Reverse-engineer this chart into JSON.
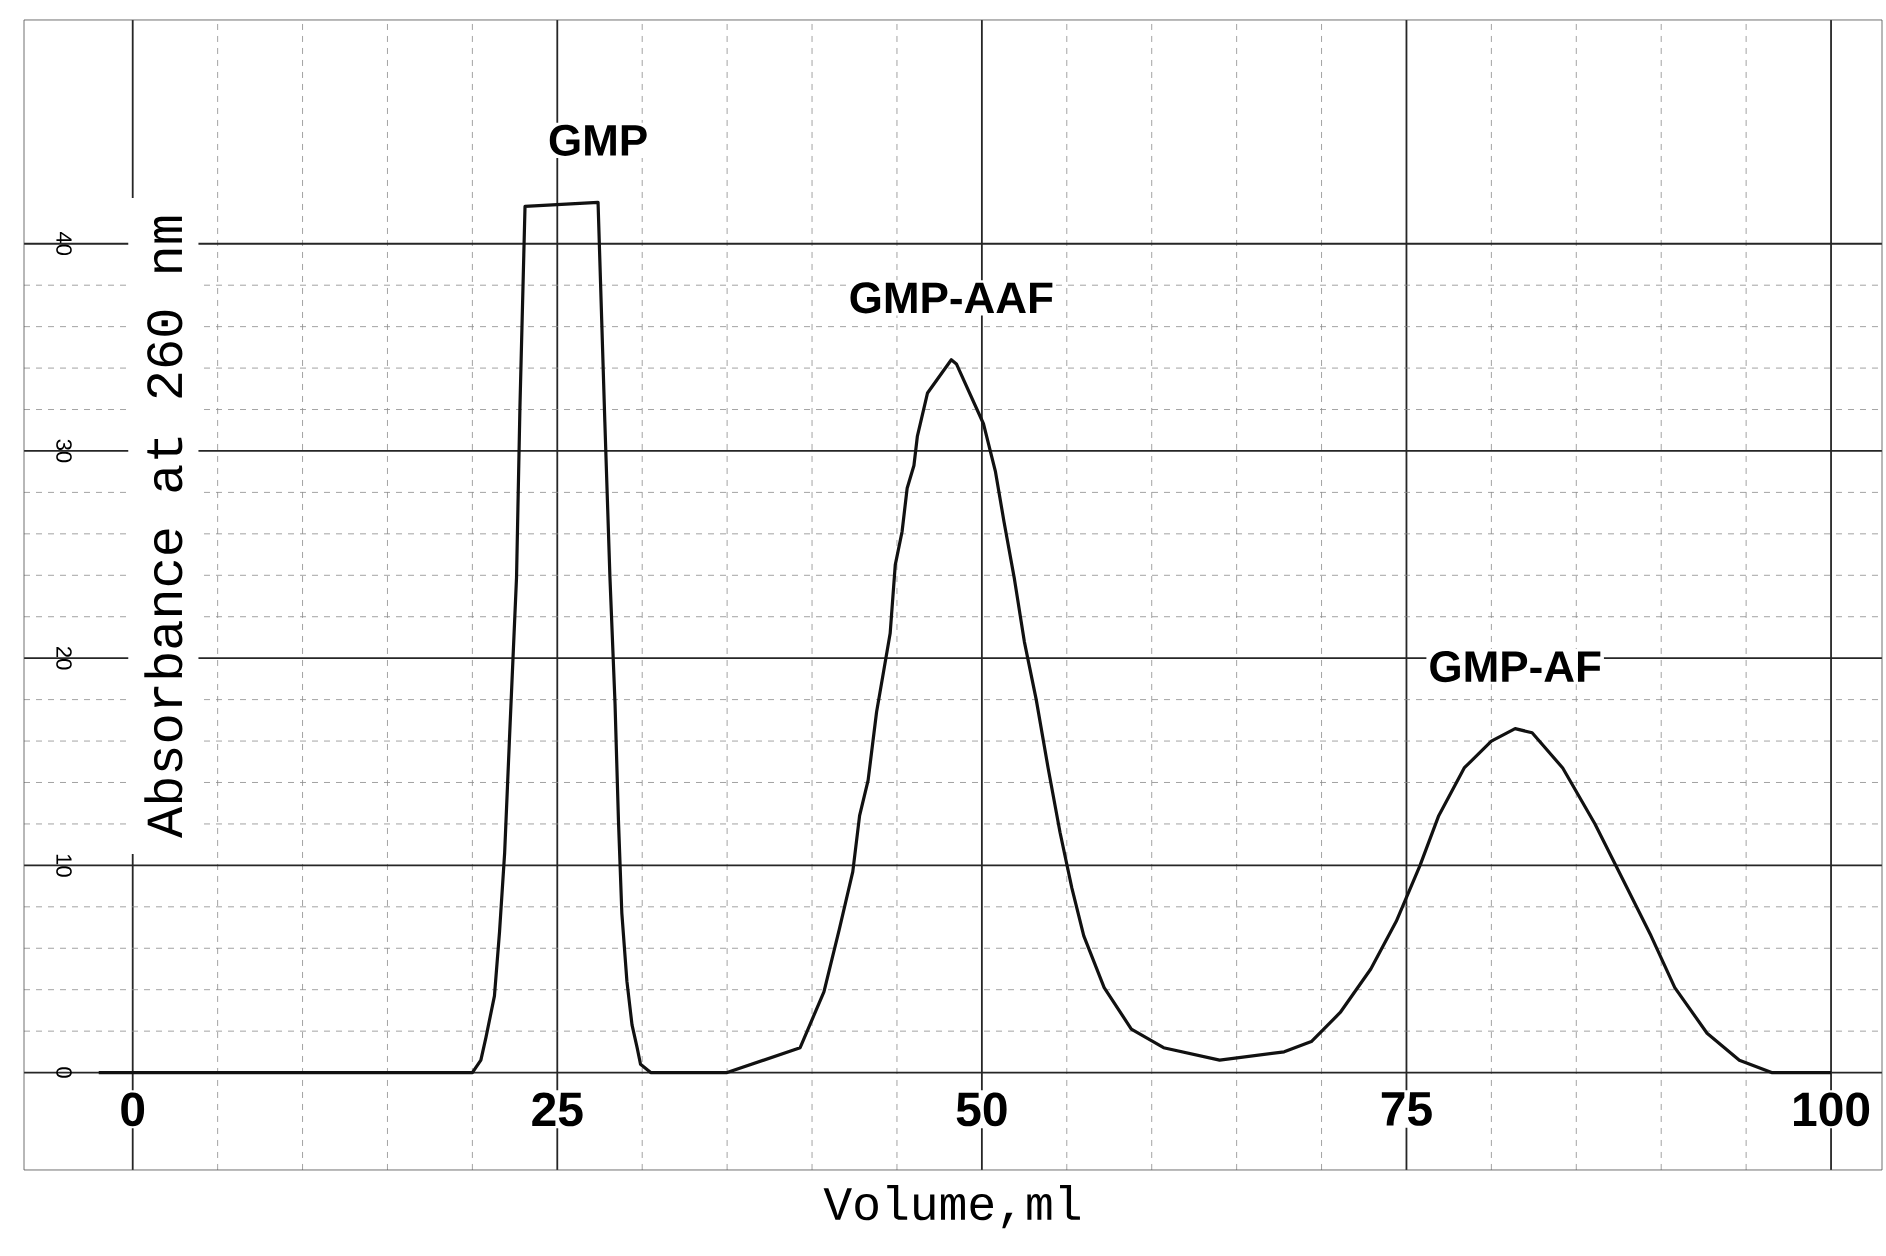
{
  "chart_data": {
    "type": "line",
    "xlabel": "Volume,ml",
    "ylabel": "Absorbance at 260 nm",
    "x": [
      -2,
      5,
      10,
      15,
      20,
      20.5,
      20.8,
      21.3,
      21.6,
      21.9,
      22.2,
      22.6,
      22.8,
      23.1,
      27.4,
      27.8,
      28.1,
      28.4,
      28.6,
      28.8,
      29.1,
      29.4,
      29.7,
      29.9,
      30.5,
      35,
      39.3,
      40.7,
      41.6,
      42.4,
      42.8,
      43.3,
      43.8,
      44.2,
      44.6,
      44.9,
      45.3,
      45.6,
      46,
      46.2,
      46.8,
      48.2,
      48.5,
      50.1,
      50.8,
      51.3,
      51.9,
      52.5,
      53.2,
      53.9,
      54.6,
      55.3,
      56,
      57.2,
      58.8,
      60.7,
      64,
      67.8,
      69.4,
      71.1,
      72.9,
      74.4,
      75.8,
      76.9,
      78.4,
      80,
      81.4,
      82.4,
      84.2,
      86.1,
      88,
      89.4,
      90.8,
      92.7,
      94.6,
      96.5,
      100
    ],
    "series": [
      {
        "color": "#111111",
        "values": [
          0,
          0,
          0,
          0,
          0,
          0.6,
          1.7,
          3.7,
          6.8,
          10.6,
          16.4,
          23.9,
          32.1,
          41.8,
          42.0,
          31.4,
          23.9,
          17.8,
          12.2,
          7.7,
          4.4,
          2.3,
          1.2,
          0.4,
          0,
          0,
          1.2,
          3.9,
          6.9,
          9.7,
          12.4,
          14.1,
          17.4,
          19.3,
          21.2,
          24.5,
          26.1,
          28.2,
          29.3,
          30.7,
          32.8,
          34.4,
          34.2,
          31.3,
          29.0,
          26.6,
          23.9,
          20.8,
          18.0,
          14.7,
          11.6,
          8.9,
          6.6,
          4.1,
          2.1,
          1.2,
          0.6,
          1.0,
          1.5,
          2.9,
          5.0,
          7.3,
          10.0,
          12.4,
          14.7,
          16.0,
          16.6,
          16.4,
          14.7,
          12.0,
          8.9,
          6.6,
          4.1,
          1.9,
          0.6,
          0,
          0
        ]
      }
    ],
    "xlim": [
      -6.4,
      103
    ],
    "ylim": [
      -4.7,
      50.8
    ],
    "xticks": [
      0,
      25,
      50,
      75,
      100
    ],
    "yticks": [
      0,
      10,
      20,
      30,
      40
    ],
    "grid": true,
    "annotations": [
      "GMP",
      "GMP-AAF",
      "GMP-AF"
    ]
  }
}
